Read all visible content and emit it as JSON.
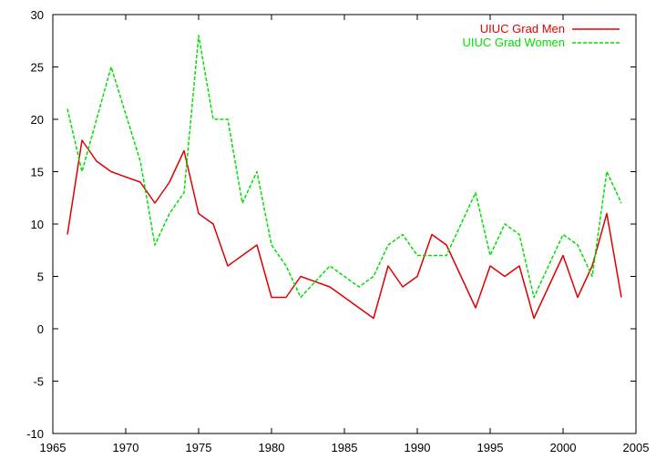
{
  "chart_data": {
    "type": "line",
    "title": "",
    "xlabel": "",
    "ylabel": "",
    "xlim": [
      1965,
      2005
    ],
    "ylim": [
      -10,
      30
    ],
    "xticks": [
      1965,
      1970,
      1975,
      1980,
      1985,
      1990,
      1995,
      2000,
      2005
    ],
    "yticks": [
      -10,
      -5,
      0,
      5,
      10,
      15,
      20,
      25,
      30
    ],
    "grid": false,
    "legend_position": "top-right",
    "series": [
      {
        "name": "UIUC Grad Men",
        "color": "#e00000",
        "style": "solid",
        "x": [
          1966,
          1967,
          1968,
          1969,
          1970,
          1971,
          1972,
          1973,
          1974,
          1975,
          1976,
          1977,
          1978,
          1979,
          1980,
          1981,
          1982,
          1983,
          1984,
          1985,
          1986,
          1987,
          1988,
          1989,
          1990,
          1991,
          1992,
          1993,
          1994,
          1995,
          1996,
          1997,
          1998,
          1999,
          2000,
          2001,
          2002,
          2003,
          2004
        ],
        "y": [
          9,
          18,
          16,
          15,
          14.5,
          14,
          12,
          14,
          17,
          11,
          10,
          6,
          7,
          8,
          3,
          3,
          5,
          4.5,
          4,
          3,
          2,
          1,
          6,
          4,
          5,
          9,
          8,
          5,
          2,
          6,
          5,
          6,
          1,
          4,
          7,
          3,
          6,
          11,
          3
        ]
      },
      {
        "name": "UIUC Grad Women",
        "color": "#00e000",
        "style": "dashed",
        "x": [
          1966,
          1967,
          1968,
          1969,
          1970,
          1971,
          1972,
          1973,
          1974,
          1975,
          1976,
          1977,
          1978,
          1979,
          1980,
          1981,
          1982,
          1983,
          1984,
          1985,
          1986,
          1987,
          1988,
          1989,
          1990,
          1991,
          1992,
          1993,
          1994,
          1995,
          1996,
          1997,
          1998,
          1999,
          2000,
          2001,
          2002,
          2003,
          2004
        ],
        "y": [
          21,
          15,
          20,
          25,
          20.5,
          16,
          8,
          11,
          13,
          28,
          20,
          20,
          12,
          15,
          8,
          6,
          3,
          4.5,
          6,
          5,
          4,
          5,
          8,
          9,
          7,
          7,
          7,
          10,
          13,
          7,
          10,
          9,
          3,
          6,
          9,
          8,
          5,
          15,
          12
        ]
      }
    ]
  }
}
